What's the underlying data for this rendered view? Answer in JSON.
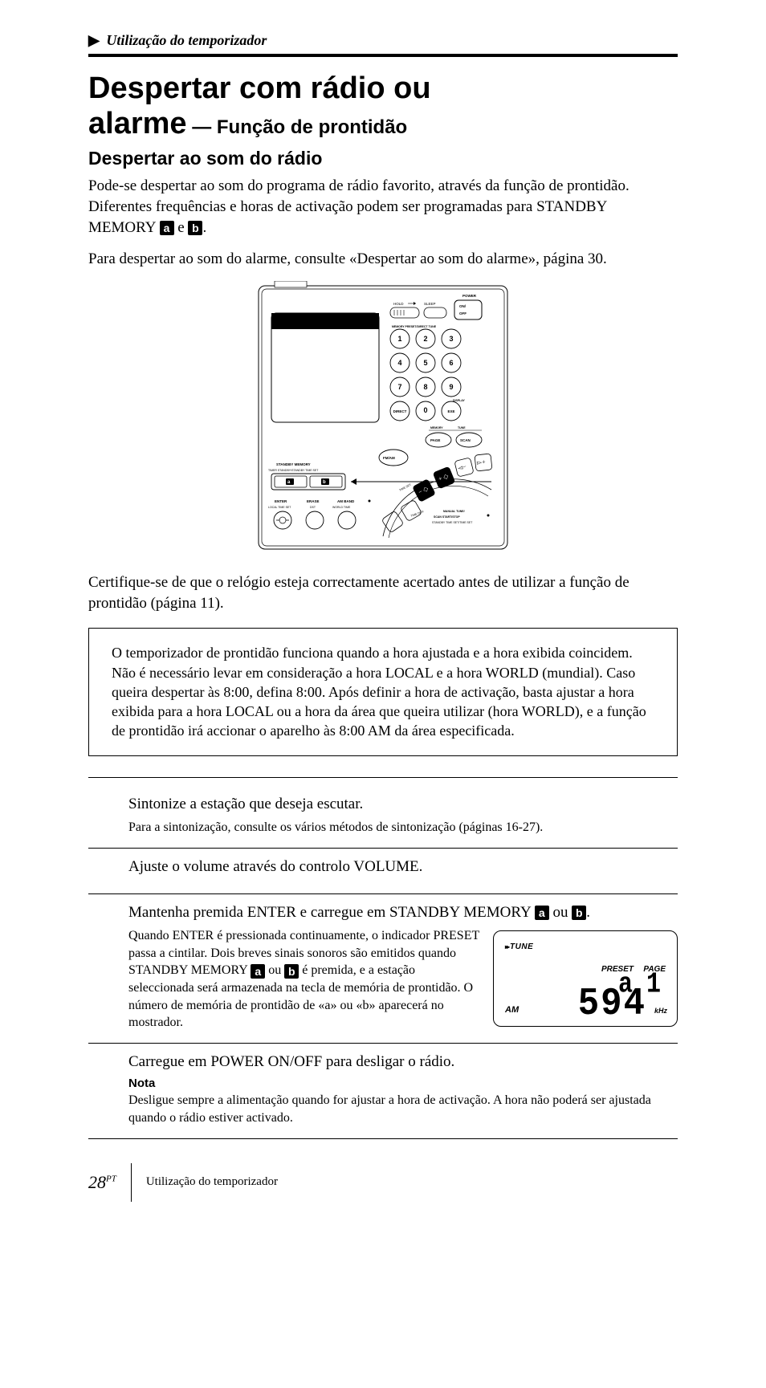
{
  "breadcrumb": {
    "marker": "▶",
    "text": "Utilização do temporizador"
  },
  "heading": {
    "line1": "Despertar com rádio ou",
    "line2_main": "alarme",
    "line2_sub": " — Função de prontidão"
  },
  "subheading": "Despertar ao som do rádio",
  "intro": {
    "p1a": "Pode-se despertar ao som do programa de rádio favorito, através da função de prontidão. Diferentes frequências e horas de activação podem ser programadas para STANDBY MEMORY ",
    "p1b": " e ",
    "p1c": ".",
    "p2": "Para despertar ao som do alarme, consulte «Despertar ao som do alarme», página 30."
  },
  "badges": {
    "a": "a",
    "b": "b"
  },
  "device": {
    "power": "POWER",
    "hold": "HOLD",
    "sleep": "SLEEP",
    "onoff1": "ON/",
    "onoff2": "OFF",
    "preset_line": "MEMORY PRESET/DIRECT TUNE",
    "display": "DISPLAY",
    "direct": "DIRECT",
    "exe": "EXE",
    "memory": "MEMORY",
    "tune": "TUNE",
    "page": "PAGE",
    "scan": "SCAN",
    "fmam": "FM/AM",
    "standby_memory": "STANDBY MEMORY",
    "timer_line": "TIMER STANDBY/STANDBY TIME SET",
    "enter": "ENTER",
    "erase": "ERASE",
    "amband": "AM BAND",
    "local": "LOCAL TIME SET",
    "dst": "DST",
    "world": "WORLD TIME",
    "timeset": "TIME SET",
    "timediff": "TIME DIFF",
    "manual1": "MANUAL TUNE/",
    "manual2": "SCAN START/STOP",
    "manual3": "STANDBY TIME SET/TIME SET",
    "keys": [
      "1",
      "2",
      "3",
      "4",
      "5",
      "6",
      "7",
      "8",
      "9",
      "0"
    ]
  },
  "after_device": "Certifique-se de que o relógio esteja correctamente acertado antes de utilizar a função de prontidão (página 11).",
  "infobox": "O temporizador de prontidão funciona quando a hora ajustada e a hora exibida coincidem. Não é necessário levar em consideração a hora LOCAL e a hora WORLD (mundial). Caso queira despertar às 8:00, defina 8:00. Após definir a hora de activação, basta ajustar a hora exibida para a hora LOCAL ou a hora da área que queira utilizar (hora WORLD), e a função de prontidão irá accionar o aparelho às 8:00 AM da área especificada.",
  "steps": {
    "s1": {
      "title": "Sintonize a estação que deseja escutar.",
      "note": "Para a sintonização, consulte os vários métodos de sintonização (páginas 16-27)."
    },
    "s2": {
      "title": "Ajuste o volume através do controlo VOLUME."
    },
    "s3": {
      "title_a": "Mantenha premida ENTER e carregue em STANDBY MEMORY ",
      "title_b": " ou ",
      "title_c": ".",
      "note_a": "Quando ENTER é pressionada continuamente, o indicador PRESET passa a cintilar. Dois breves sinais sonoros são emitidos quando STANDBY MEMORY ",
      "note_b": " ou ",
      "note_c": " é premida, e a estação seleccionada será armazenada na tecla de memória de prontidão. O número de memória de prontidão de «a» ou «b» aparecerá no mostrador."
    },
    "s4": {
      "title": "Carregue em POWER ON/OFF para desligar o rádio.",
      "notelabel": "Nota",
      "note": "Desligue sempre a alimentação quando for ajustar a hora de activação. A hora não poderá ser ajustada quando o rádio estiver activado."
    }
  },
  "lcd": {
    "tune": "TUNE",
    "preset_lbl": "PRESET",
    "page_lbl": "PAGE",
    "preset_val": "a",
    "page_val": "1",
    "am": "AM",
    "freq": "594",
    "khz": "kHz"
  },
  "footer": {
    "pagenum": "28",
    "lang": "PT",
    "section": "Utilização do temporizador"
  }
}
